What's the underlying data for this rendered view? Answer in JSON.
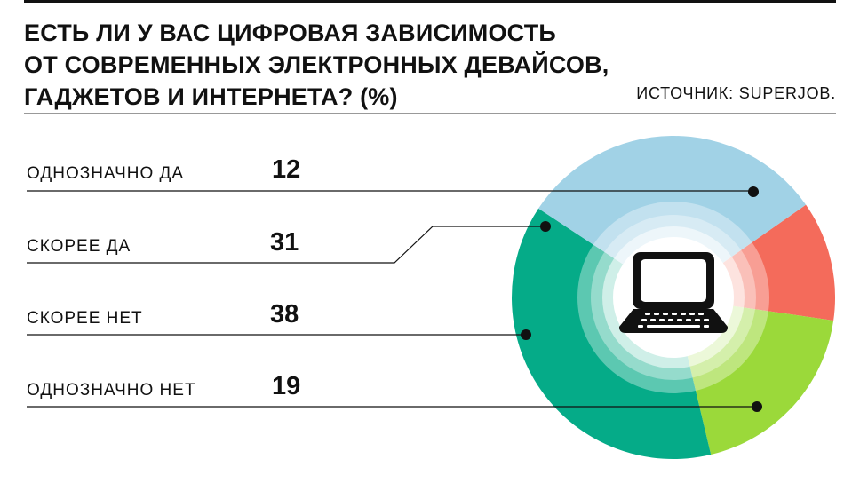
{
  "title_lines": [
    "ЕСТЬ ЛИ У ВАС ЦИФРОВАЯ ЗАВИСИМОСТЬ",
    "ОТ СОВРЕМЕННЫХ ЭЛЕКТРОННЫХ ДЕВАЙСОВ,",
    "ГАДЖЕТОВ И ИНТЕРНЕТА? (%)"
  ],
  "source": "ИСТОЧНИК: SUPERJOB.",
  "chart_data": {
    "type": "pie",
    "title": "ЕСТЬ ЛИ У ВАС ЦИФРОВАЯ ЗАВИСИМОСТЬ ОТ СОВРЕМЕННЫХ ЭЛЕКТРОННЫХ ДЕВАЙСОВ, ГАДЖЕТОВ И ИНТЕРНЕТА? (%)",
    "unit": "%",
    "categories": [
      "ОДНОЗНАЧНО ДА",
      "СКОРЕЕ ДА",
      "СКОРЕЕ НЕТ",
      "ОДНОЗНАЧНО НЕТ"
    ],
    "values": [
      12,
      31,
      38,
      19
    ],
    "display_values": [
      "12",
      "31",
      "38",
      "19"
    ],
    "colors": [
      "#f46b5b",
      "#a1d2e6",
      "#05ab88",
      "#9bd93a"
    ],
    "center_icon": "laptop-icon"
  }
}
